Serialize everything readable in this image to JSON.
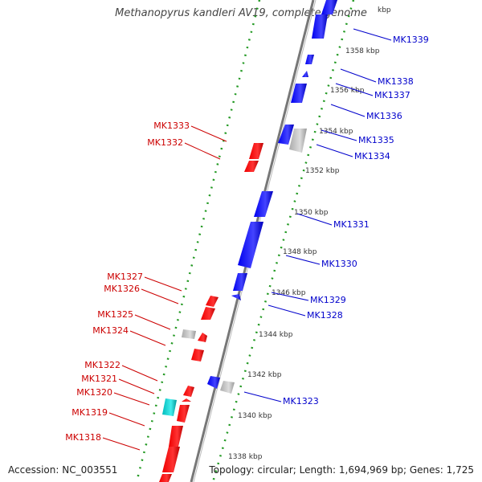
{
  "title": "Methanopyrus kandleri AV19, complete genome",
  "accession": "Accession: NC_003551",
  "topology": "Topology: circular; Length: 1,694,969 bp; Genes: 1,725",
  "colors": {
    "forward": "#ee0000",
    "reverse": "#0000ee",
    "grey": "#bbbbbb",
    "cyan": "#22cccc",
    "dots": "#229922",
    "label_red": "#cc0000",
    "label_blue": "#0000cc"
  },
  "ticks": [
    "kbp",
    "1358 kbp",
    "1356 kbp",
    "1354 kbp",
    "1352 kbp",
    "1350 kbp",
    "1348 kbp",
    "1346 kbp",
    "1344 kbp",
    "1342 kbp",
    "1340 kbp",
    "1338 kbp"
  ],
  "labels_left": [
    "MK1333",
    "MK1332",
    "MK1327",
    "MK1326",
    "MK1325",
    "MK1324",
    "MK1322",
    "MK1321",
    "MK1320",
    "MK1319",
    "MK1318"
  ],
  "labels_right": [
    "MK1339",
    "MK1338",
    "MK1337",
    "MK1336",
    "MK1335",
    "MK1334",
    "MK1331",
    "MK1330",
    "MK1329",
    "MK1328",
    "MK1323"
  ]
}
